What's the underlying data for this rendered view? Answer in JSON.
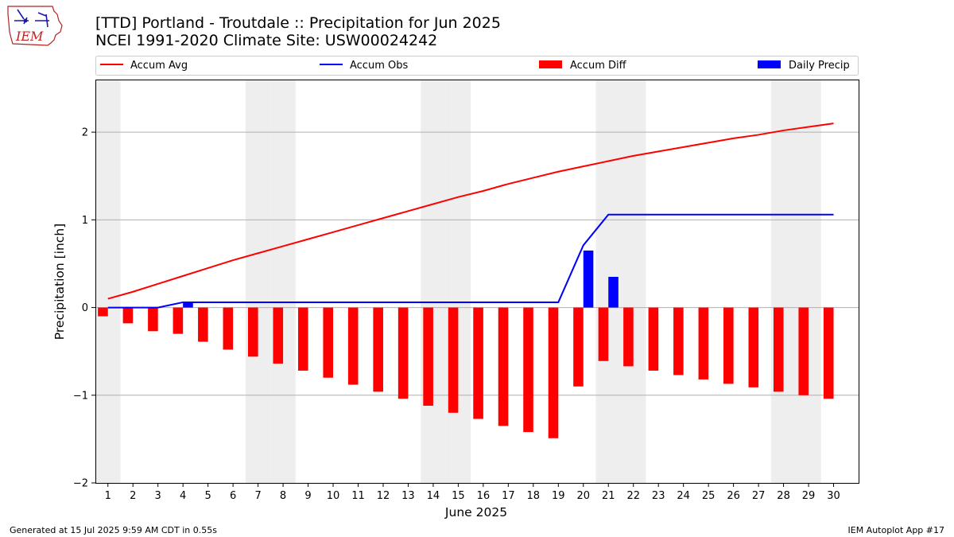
{
  "logo": {
    "text": "IEM"
  },
  "header": {
    "title": "[TTD] Portland - Troutdale :: Precipitation for Jun 2025",
    "subtitle": "NCEI 1991-2020 Climate Site: USW00024242"
  },
  "footer": {
    "left": "Generated at 15 Jul 2025 9:59 AM CDT in 0.55s",
    "right": "IEM Autoplot App #17"
  },
  "colors": {
    "avg": "#ff0000",
    "obs": "#0000ff",
    "diff": "#ff0000",
    "daily": "#0000ff",
    "weekend": "#eeeeee",
    "grid": "#b0b0b0"
  },
  "chart_data": {
    "type": "bar",
    "xlabel": "June 2025",
    "ylabel": "Precipitation [inch]",
    "ylim": [
      -2,
      2.6
    ],
    "xlim": [
      0.5,
      31
    ],
    "yticks": [
      -2,
      -1,
      0,
      1,
      2
    ],
    "grid": "horizontal",
    "legend_position": "top",
    "days": [
      1,
      2,
      3,
      4,
      5,
      6,
      7,
      8,
      9,
      10,
      11,
      12,
      13,
      14,
      15,
      16,
      17,
      18,
      19,
      20,
      21,
      22,
      23,
      24,
      25,
      26,
      27,
      28,
      29,
      30
    ],
    "weekend_days": [
      1,
      7,
      8,
      14,
      15,
      21,
      22,
      28,
      29
    ],
    "series": [
      {
        "name": "Accum Avg",
        "kind": "line",
        "values": [
          0.1,
          0.18,
          0.27,
          0.36,
          0.45,
          0.54,
          0.62,
          0.7,
          0.78,
          0.86,
          0.94,
          1.02,
          1.1,
          1.18,
          1.26,
          1.33,
          1.41,
          1.48,
          1.55,
          1.61,
          1.67,
          1.73,
          1.78,
          1.83,
          1.88,
          1.93,
          1.97,
          2.02,
          2.06,
          2.1
        ]
      },
      {
        "name": "Accum Obs",
        "kind": "line",
        "values": [
          0,
          0,
          0,
          0.06,
          0.06,
          0.06,
          0.06,
          0.06,
          0.06,
          0.06,
          0.06,
          0.06,
          0.06,
          0.06,
          0.06,
          0.06,
          0.06,
          0.06,
          0.06,
          0.71,
          1.06,
          1.06,
          1.06,
          1.06,
          1.06,
          1.06,
          1.06,
          1.06,
          1.06,
          1.06
        ]
      },
      {
        "name": "Accum Diff",
        "kind": "bar",
        "values": [
          -0.1,
          -0.18,
          -0.27,
          -0.3,
          -0.39,
          -0.48,
          -0.56,
          -0.64,
          -0.72,
          -0.8,
          -0.88,
          -0.96,
          -1.04,
          -1.12,
          -1.2,
          -1.27,
          -1.35,
          -1.42,
          -1.49,
          -0.9,
          -0.61,
          -0.67,
          -0.72,
          -0.77,
          -0.82,
          -0.87,
          -0.91,
          -0.96,
          -1.0,
          -1.04
        ]
      },
      {
        "name": "Daily Precip",
        "kind": "bar",
        "values": [
          0,
          0,
          0,
          0.06,
          0,
          0,
          0,
          0,
          0,
          0,
          0,
          0,
          0,
          0,
          0,
          0,
          0,
          0,
          0,
          0.65,
          0.35,
          0,
          0,
          0,
          0,
          0,
          0,
          0,
          0,
          0
        ]
      }
    ]
  }
}
